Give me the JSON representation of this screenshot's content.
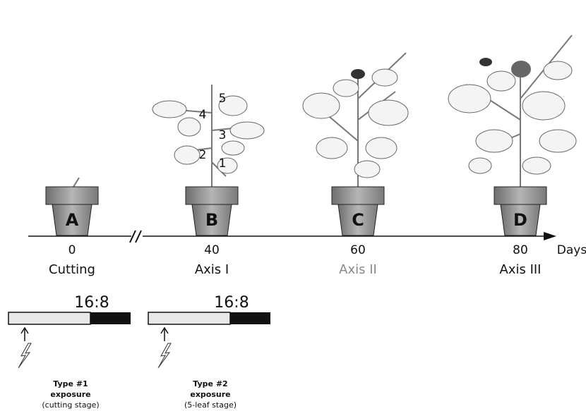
{
  "stages": [
    {
      "pot": "A",
      "day": 0,
      "label": "Cutting"
    },
    {
      "pot": "B",
      "day": 40,
      "label": "Axis I"
    },
    {
      "pot": "C",
      "day": 60,
      "label": "Axis II"
    },
    {
      "pot": "D",
      "day": 80,
      "label": "Axis III"
    }
  ],
  "axis_unit": "Days",
  "leaf_numbers": [
    "1",
    "2",
    "3",
    "4",
    "5"
  ],
  "exposures": [
    {
      "photoperiod": "16:8",
      "type": "Type #1",
      "word": "exposure",
      "stage": "(cutting stage)"
    },
    {
      "photoperiod": "16:8",
      "type": "Type #2",
      "word": "exposure",
      "stage": "(5-leaf stage)"
    }
  ]
}
